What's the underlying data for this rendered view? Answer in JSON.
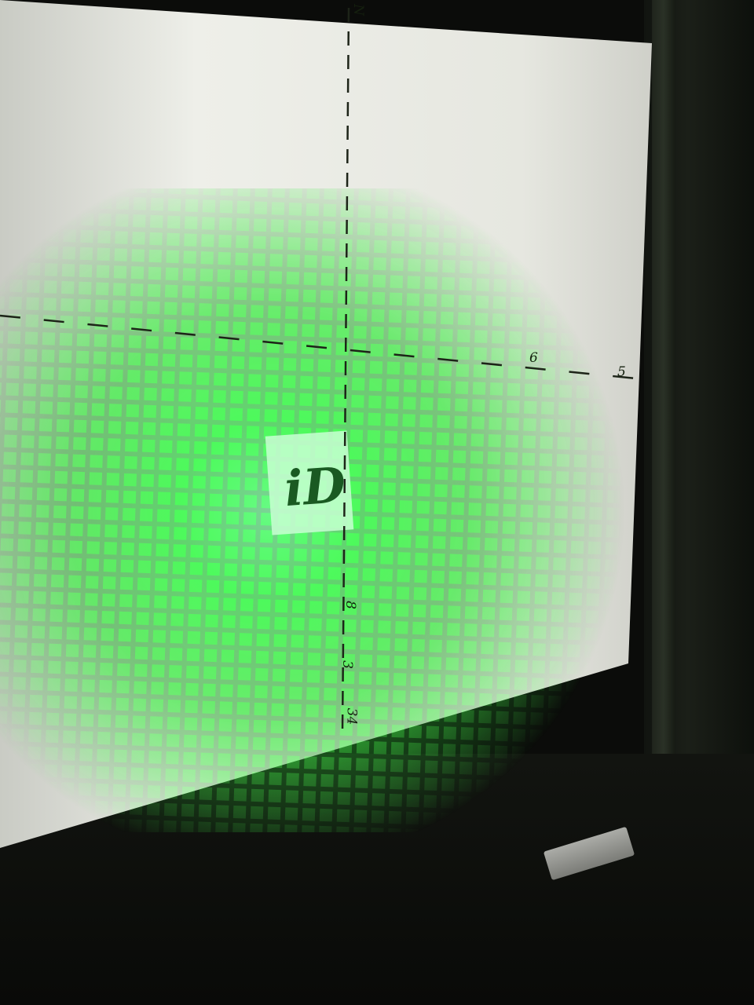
{
  "scene": {
    "description_colors": {
      "screen": "#e9ebe4",
      "laser": "#3dff52",
      "frame": "#121410",
      "logo_panel": "#c8ffd2"
    }
  },
  "annotations": {
    "top_label": "N",
    "right_tick_1": "6",
    "right_tick_2": "5",
    "bottom_tick_1": "8",
    "bottom_tick_2": "3",
    "bottom_tick_3": "34"
  },
  "logo": {
    "glyph": "iD"
  }
}
